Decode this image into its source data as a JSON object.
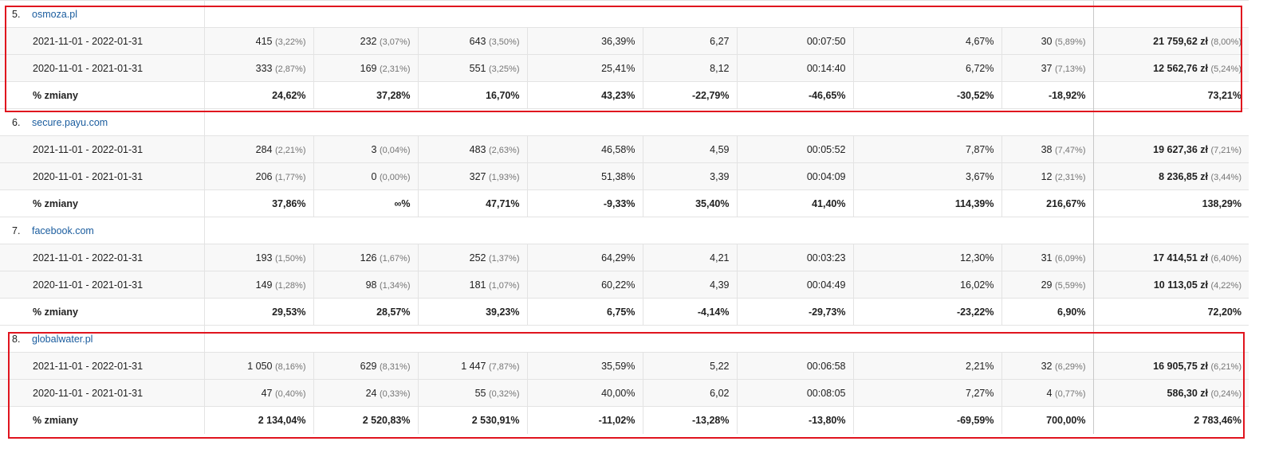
{
  "highlight_color": "#e0141e",
  "link_color": "#1a5c9e",
  "groups": [
    {
      "index": "5.",
      "site": "osmoza.pl",
      "rows": [
        {
          "label": "2021-11-01 - 2022-01-31",
          "c1": {
            "value": "415",
            "share": "(3,22%)"
          },
          "c2": {
            "value": "232",
            "share": "(3,07%)"
          },
          "c3": {
            "value": "643",
            "share": "(3,50%)"
          },
          "c4": "36,39%",
          "c5": "6,27",
          "c6": "00:07:50",
          "c7": "4,67%",
          "c8": {
            "value": "30",
            "share": "(5,89%)"
          },
          "c9": {
            "value": "21 759,62 zł",
            "share": "(8,00%)"
          }
        },
        {
          "label": "2020-11-01 - 2021-01-31",
          "c1": {
            "value": "333",
            "share": "(2,87%)"
          },
          "c2": {
            "value": "169",
            "share": "(2,31%)"
          },
          "c3": {
            "value": "551",
            "share": "(3,25%)"
          },
          "c4": "25,41%",
          "c5": "8,12",
          "c6": "00:14:40",
          "c7": "6,72%",
          "c8": {
            "value": "37",
            "share": "(7,13%)"
          },
          "c9": {
            "value": "12 562,76 zł",
            "share": "(5,24%)"
          }
        }
      ],
      "change": {
        "label": "% zmiany",
        "values": [
          "24,62%",
          "37,28%",
          "16,70%",
          "43,23%",
          "-22,79%",
          "-46,65%",
          "-30,52%",
          "-18,92%",
          "73,21%"
        ]
      }
    },
    {
      "index": "6.",
      "site": "secure.payu.com",
      "rows": [
        {
          "label": "2021-11-01 - 2022-01-31",
          "c1": {
            "value": "284",
            "share": "(2,21%)"
          },
          "c2": {
            "value": "3",
            "share": "(0,04%)"
          },
          "c3": {
            "value": "483",
            "share": "(2,63%)"
          },
          "c4": "46,58%",
          "c5": "4,59",
          "c6": "00:05:52",
          "c7": "7,87%",
          "c8": {
            "value": "38",
            "share": "(7,47%)"
          },
          "c9": {
            "value": "19 627,36 zł",
            "share": "(7,21%)"
          }
        },
        {
          "label": "2020-11-01 - 2021-01-31",
          "c1": {
            "value": "206",
            "share": "(1,77%)"
          },
          "c2": {
            "value": "0",
            "share": "(0,00%)"
          },
          "c3": {
            "value": "327",
            "share": "(1,93%)"
          },
          "c4": "51,38%",
          "c5": "3,39",
          "c6": "00:04:09",
          "c7": "3,67%",
          "c8": {
            "value": "12",
            "share": "(2,31%)"
          },
          "c9": {
            "value": "8 236,85 zł",
            "share": "(3,44%)"
          }
        }
      ],
      "change": {
        "label": "% zmiany",
        "values": [
          "37,86%",
          "∞%",
          "47,71%",
          "-9,33%",
          "35,40%",
          "41,40%",
          "114,39%",
          "216,67%",
          "138,29%"
        ]
      }
    },
    {
      "index": "7.",
      "site": "facebook.com",
      "rows": [
        {
          "label": "2021-11-01 - 2022-01-31",
          "c1": {
            "value": "193",
            "share": "(1,50%)"
          },
          "c2": {
            "value": "126",
            "share": "(1,67%)"
          },
          "c3": {
            "value": "252",
            "share": "(1,37%)"
          },
          "c4": "64,29%",
          "c5": "4,21",
          "c6": "00:03:23",
          "c7": "12,30%",
          "c8": {
            "value": "31",
            "share": "(6,09%)"
          },
          "c9": {
            "value": "17 414,51 zł",
            "share": "(6,40%)"
          }
        },
        {
          "label": "2020-11-01 - 2021-01-31",
          "c1": {
            "value": "149",
            "share": "(1,28%)"
          },
          "c2": {
            "value": "98",
            "share": "(1,34%)"
          },
          "c3": {
            "value": "181",
            "share": "(1,07%)"
          },
          "c4": "60,22%",
          "c5": "4,39",
          "c6": "00:04:49",
          "c7": "16,02%",
          "c8": {
            "value": "29",
            "share": "(5,59%)"
          },
          "c9": {
            "value": "10 113,05 zł",
            "share": "(4,22%)"
          }
        }
      ],
      "change": {
        "label": "% zmiany",
        "values": [
          "29,53%",
          "28,57%",
          "39,23%",
          "6,75%",
          "-4,14%",
          "-29,73%",
          "-23,22%",
          "6,90%",
          "72,20%"
        ]
      }
    },
    {
      "index": "8.",
      "site": "globalwater.pl",
      "rows": [
        {
          "label": "2021-11-01 - 2022-01-31",
          "c1": {
            "value": "1 050",
            "share": "(8,16%)"
          },
          "c2": {
            "value": "629",
            "share": "(8,31%)"
          },
          "c3": {
            "value": "1 447",
            "share": "(7,87%)"
          },
          "c4": "35,59%",
          "c5": "5,22",
          "c6": "00:06:58",
          "c7": "2,21%",
          "c8": {
            "value": "32",
            "share": "(6,29%)"
          },
          "c9": {
            "value": "16 905,75 zł",
            "share": "(6,21%)"
          }
        },
        {
          "label": "2020-11-01 - 2021-01-31",
          "c1": {
            "value": "47",
            "share": "(0,40%)"
          },
          "c2": {
            "value": "24",
            "share": "(0,33%)"
          },
          "c3": {
            "value": "55",
            "share": "(0,32%)"
          },
          "c4": "40,00%",
          "c5": "6,02",
          "c6": "00:08:05",
          "c7": "7,27%",
          "c8": {
            "value": "4",
            "share": "(0,77%)"
          },
          "c9": {
            "value": "586,30 zł",
            "share": "(0,24%)"
          }
        }
      ],
      "change": {
        "label": "% zmiany",
        "values": [
          "2 134,04%",
          "2 520,83%",
          "2 530,91%",
          "-11,02%",
          "-13,28%",
          "-13,80%",
          "-69,59%",
          "700,00%",
          "2 783,46%"
        ]
      }
    }
  ]
}
